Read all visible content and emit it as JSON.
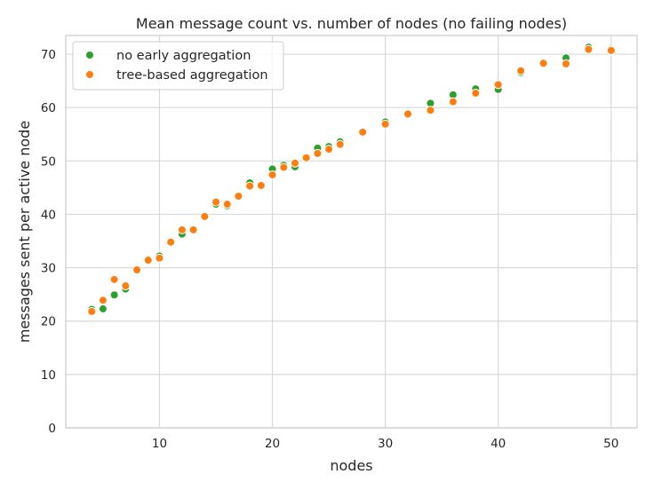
{
  "chart_data": {
    "type": "scatter",
    "title": "Mean message count vs. number of nodes (no failing nodes)",
    "xlabel": "nodes",
    "ylabel": "messages sent per active node",
    "xlim": [
      1.7,
      52.3
    ],
    "ylim": [
      0,
      73.5
    ],
    "xticks": [
      10,
      20,
      30,
      40,
      50
    ],
    "yticks": [
      0,
      10,
      20,
      30,
      40,
      50,
      60,
      70
    ],
    "grid": true,
    "legend": "top-left",
    "series": [
      {
        "name": "no early aggregation",
        "color": "#2ca02c",
        "x": [
          4,
          5,
          6,
          7,
          8,
          9,
          10,
          11,
          12,
          13,
          14,
          15,
          16,
          17,
          18,
          19,
          20,
          21,
          22,
          23,
          24,
          25,
          26,
          28,
          30,
          32,
          34,
          36,
          38,
          40,
          42,
          44,
          46,
          48,
          50
        ],
        "y": [
          22.2,
          22.3,
          24.9,
          26.0,
          29.6,
          31.6,
          32.2,
          34.8,
          36.3,
          37.1,
          39.6,
          41.9,
          41.6,
          43.5,
          45.9,
          45.5,
          48.5,
          49.2,
          48.9,
          50.5,
          52.4,
          52.7,
          53.6,
          55.3,
          57.3,
          58.7,
          60.8,
          62.4,
          63.5,
          63.4,
          66.6,
          68.2,
          69.3,
          71.3,
          70.6
        ]
      },
      {
        "name": "tree-based aggregation",
        "color": "#ff7f0e",
        "x": [
          4,
          5,
          6,
          7,
          8,
          9,
          10,
          11,
          12,
          13,
          14,
          15,
          16,
          17,
          18,
          19,
          20,
          21,
          22,
          23,
          24,
          25,
          26,
          28,
          30,
          32,
          34,
          36,
          38,
          40,
          42,
          44,
          46,
          48,
          50
        ],
        "y": [
          21.8,
          23.9,
          27.8,
          26.6,
          29.6,
          31.4,
          31.8,
          34.8,
          37.1,
          37.1,
          39.6,
          42.3,
          41.9,
          43.4,
          45.3,
          45.4,
          47.4,
          48.8,
          49.6,
          50.6,
          51.4,
          52.2,
          53.1,
          55.4,
          56.9,
          58.8,
          59.5,
          61.1,
          62.7,
          64.3,
          66.9,
          68.3,
          68.2,
          70.9,
          70.7
        ]
      }
    ]
  }
}
